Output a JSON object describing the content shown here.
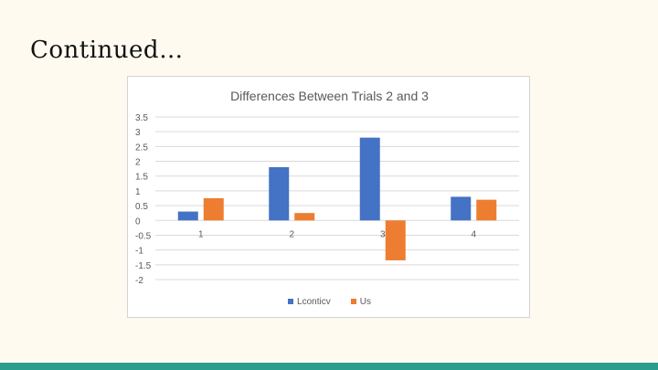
{
  "slide": {
    "title": "Continued…"
  },
  "colors": {
    "background": "#fefaf0",
    "bottom_bar": "#2a9d8f",
    "series1": "#4472c4",
    "series2": "#ed7d31",
    "grid": "#d9d9d9",
    "text": "#595959"
  },
  "chart_data": {
    "type": "bar",
    "title": "Differences Between Trials 2 and 3",
    "xlabel": "",
    "ylabel": "",
    "categories": [
      "1",
      "2",
      "3",
      "4"
    ],
    "ylim": [
      -2,
      3.5
    ],
    "ytick_step": 0.5,
    "ytick_labels": [
      "3.5",
      "3",
      "2.5",
      "2",
      "1.5",
      "1",
      "0.5",
      "0",
      "-0.5",
      "-1",
      "-1.5",
      "-2"
    ],
    "grid": true,
    "legend_position": "bottom",
    "series": [
      {
        "name": "Lconticv",
        "values": [
          0.3,
          1.8,
          2.8,
          0.8
        ]
      },
      {
        "name": "Us",
        "values": [
          0.75,
          0.25,
          -1.35,
          0.7
        ]
      }
    ]
  }
}
